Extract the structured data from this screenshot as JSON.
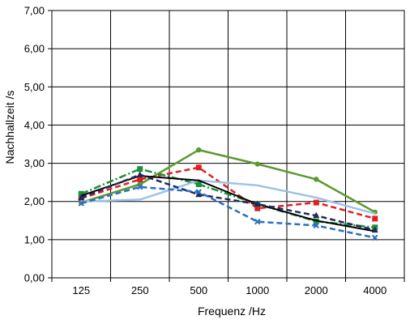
{
  "chart_data": {
    "type": "line",
    "title": "",
    "xlabel": "Frequenz /Hz",
    "ylabel": "Nachhallzeit /s",
    "categories": [
      "125",
      "250",
      "500",
      "1000",
      "2000",
      "4000"
    ],
    "ylim": [
      0,
      7
    ],
    "yticks": [
      "0,00",
      "1,00",
      "2,00",
      "3,00",
      "4,00",
      "5,00",
      "6,00",
      "7,00"
    ],
    "grid": "vertical and horizontal",
    "legend": "none",
    "series": [
      {
        "color": "#5b9a2f",
        "style": "solid",
        "marker": "circle",
        "values": [
          1.97,
          2.45,
          3.35,
          2.98,
          2.58,
          1.72
        ]
      },
      {
        "color": "#e02020",
        "style": "dashed",
        "marker": "square",
        "values": [
          2.08,
          2.58,
          2.89,
          1.82,
          1.97,
          1.55
        ]
      },
      {
        "color": "#1f8f3a",
        "style": "dash-dot",
        "marker": "square",
        "values": [
          2.2,
          2.85,
          2.45,
          1.93,
          1.48,
          1.32
        ]
      },
      {
        "color": "#9ec3e6",
        "style": "solid",
        "marker": "none",
        "values": [
          2.0,
          2.05,
          2.55,
          2.42,
          2.1,
          1.68
        ]
      },
      {
        "color": "#000000",
        "style": "solid",
        "marker": "none",
        "values": [
          2.15,
          2.67,
          2.55,
          1.93,
          1.5,
          1.22
        ]
      },
      {
        "color": "#1f2a5c",
        "style": "dashed",
        "marker": "triangle",
        "values": [
          2.1,
          2.7,
          2.18,
          1.93,
          1.63,
          1.25
        ]
      },
      {
        "color": "#2a70c0",
        "style": "dashed",
        "marker": "cross",
        "values": [
          1.95,
          2.38,
          2.25,
          1.47,
          1.37,
          1.05
        ]
      }
    ]
  }
}
